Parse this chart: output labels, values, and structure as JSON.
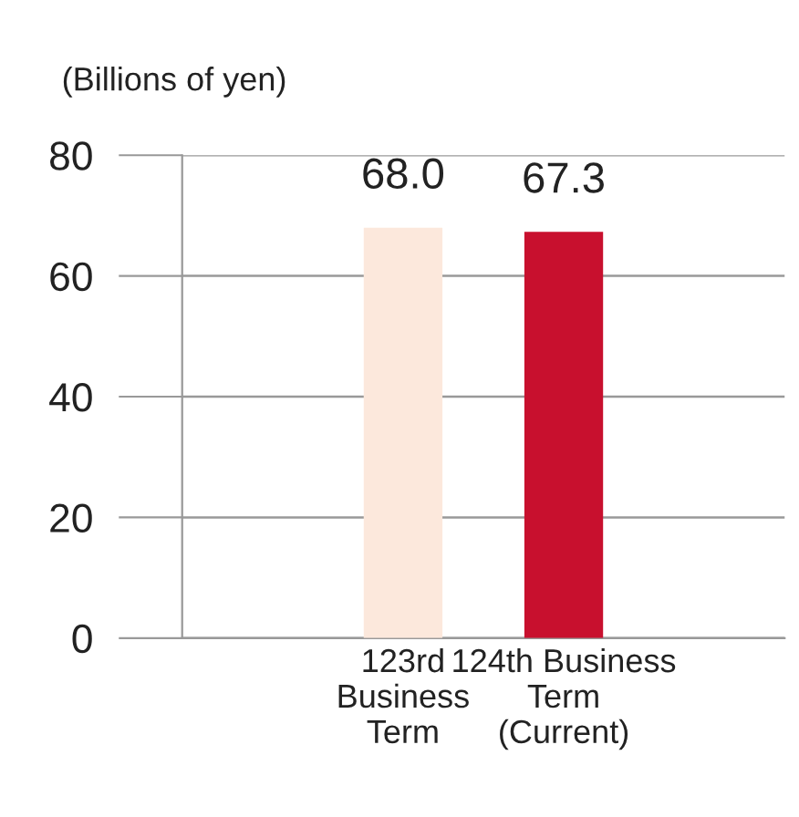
{
  "chart_data": {
    "type": "bar",
    "ylabel": "(Billions of yen)",
    "categories": [
      "123rd\nBusiness\nTerm",
      "124th Business\nTerm\n(Current)"
    ],
    "values": [
      68.0,
      67.3
    ],
    "colors": [
      "#fce8dc",
      "#c8102e"
    ],
    "value_labels": [
      "68.0",
      "67.3"
    ],
    "ylim": [
      0,
      80
    ],
    "yticks": [
      0,
      20,
      40,
      60,
      80
    ],
    "grid": "y"
  }
}
